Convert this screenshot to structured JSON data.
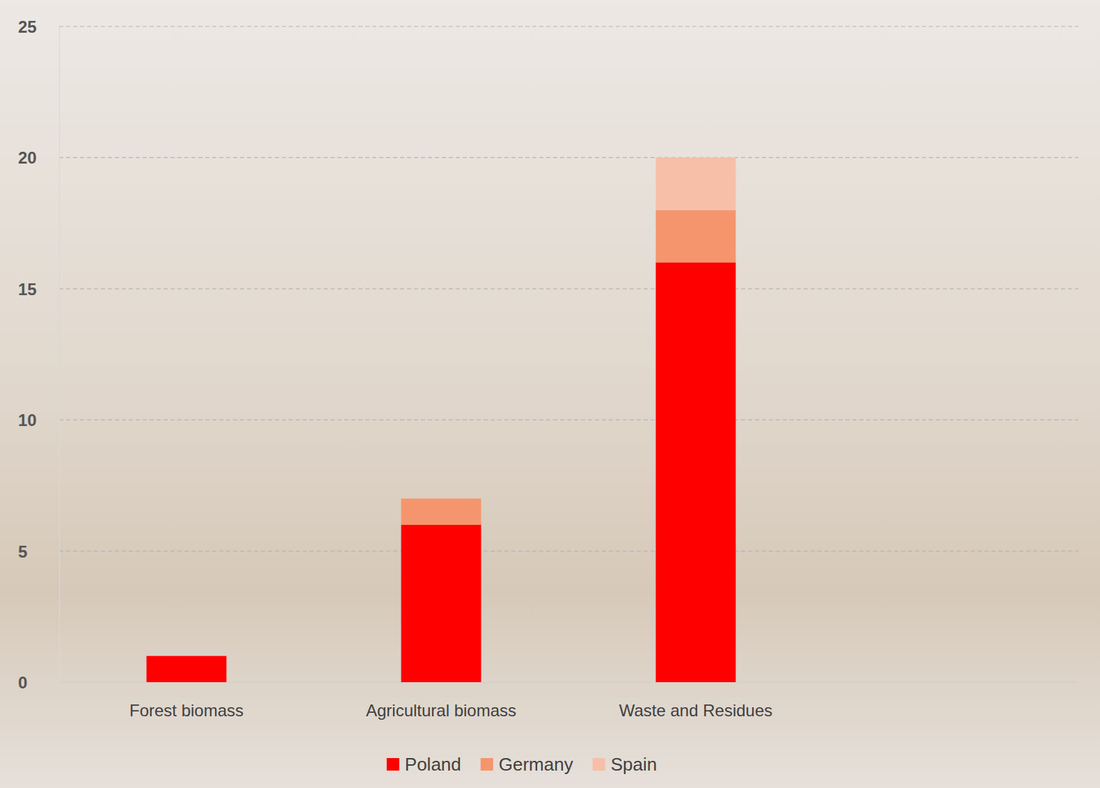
{
  "chart_data": {
    "type": "bar",
    "stacked": true,
    "grid": true,
    "legend": "bottom",
    "categories": [
      "Forest biomass",
      "Agricultural biomass",
      "Waste and Residues"
    ],
    "series": [
      {
        "name": "Poland",
        "color": "#ff0000",
        "values": [
          1,
          6,
          16
        ]
      },
      {
        "name": "Germany",
        "color": "#f4956e",
        "values": [
          0,
          1,
          2
        ]
      },
      {
        "name": "Spain",
        "color": "#f8bfa8",
        "values": [
          0,
          0,
          2
        ]
      }
    ],
    "ylim": [
      0,
      25
    ],
    "yticks": [
      0,
      5,
      10,
      15,
      20,
      25
    ]
  }
}
